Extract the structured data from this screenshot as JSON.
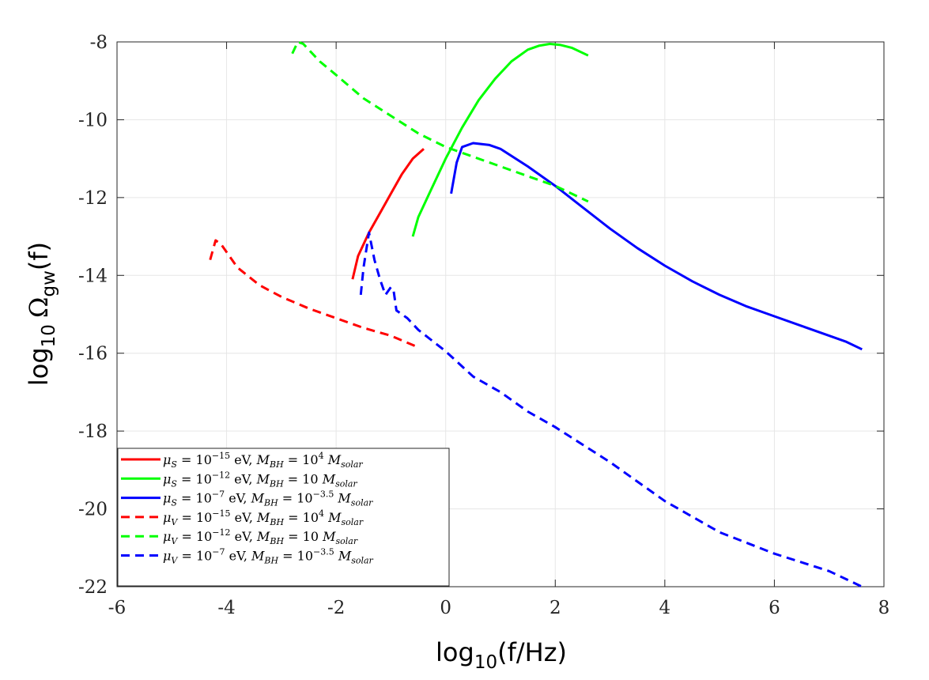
{
  "chart_data": {
    "type": "line",
    "xlabel": "log10(f/Hz)",
    "xlabel_parts": {
      "base": "log",
      "sub": "10",
      "rest": "(f/Hz)"
    },
    "ylabel": "log10 Ωgw(f)",
    "ylabel_parts": {
      "base": "log",
      "sub": "10",
      "omega": "Ω",
      "omega_sub": "gw",
      "rest": "(f)"
    },
    "xlim": [
      -6,
      8
    ],
    "ylim": [
      -22,
      -8
    ],
    "xticks": [
      -6,
      -4,
      -2,
      0,
      2,
      4,
      6,
      8
    ],
    "xtick_labels": [
      "-6",
      "-4",
      "-2",
      "0",
      "2",
      "4",
      "6",
      "8"
    ],
    "yticks": [
      -22,
      -20,
      -18,
      -16,
      -14,
      -12,
      -10,
      -8
    ],
    "ytick_labels": [
      "-22",
      "-20",
      "-18",
      "-16",
      "-14",
      "-12",
      "-10",
      "-8"
    ],
    "grid": true,
    "legend_position": "bottom-left",
    "series": [
      {
        "name": "μS = 10^-15 eV, MBH = 10^4 Msolar",
        "legend": {
          "mu": "μ",
          "mu_sub": "S",
          "eq1": " = 10",
          "exp1": "−15",
          "unit": " eV, ",
          "m": "M",
          "m_sub": "BH",
          "eq2": " = 10",
          "exp2": "4",
          "m2": " M",
          "m2_sub": "solar"
        },
        "color": "#ff0000",
        "style": "solid",
        "x": [
          -1.7,
          -1.6,
          -1.4,
          -1.2,
          -1.0,
          -0.8,
          -0.6,
          -0.4
        ],
        "y": [
          -14.1,
          -13.5,
          -12.9,
          -12.4,
          -11.9,
          -11.4,
          -11.0,
          -10.75
        ]
      },
      {
        "name": "μS = 10^-12 eV, MBH = 10 Msolar",
        "legend": {
          "mu": "μ",
          "mu_sub": "S",
          "eq1": " = 10",
          "exp1": "−12",
          "unit": " eV, ",
          "m": "M",
          "m_sub": "BH",
          "eq2": " = 10",
          "exp2": "",
          "m2": " M",
          "m2_sub": "solar"
        },
        "color": "#00ff00",
        "style": "solid",
        "x": [
          -0.6,
          -0.5,
          -0.3,
          0.0,
          0.3,
          0.6,
          0.9,
          1.2,
          1.5,
          1.7,
          1.9,
          2.1,
          2.3,
          2.6
        ],
        "y": [
          -13.0,
          -12.5,
          -11.9,
          -11.0,
          -10.2,
          -9.5,
          -8.95,
          -8.5,
          -8.2,
          -8.1,
          -8.05,
          -8.08,
          -8.15,
          -8.35
        ]
      },
      {
        "name": "μS = 10^-7 eV, MBH = 10^-3.5 Msolar",
        "legend": {
          "mu": "μ",
          "mu_sub": "S",
          "eq1": " = 10",
          "exp1": "−7",
          "unit": " eV, ",
          "m": "M",
          "m_sub": "BH",
          "eq2": " = 10",
          "exp2": "−3.5",
          "m2": " M",
          "m2_sub": "solar"
        },
        "color": "#0000ff",
        "style": "solid",
        "x": [
          0.1,
          0.2,
          0.3,
          0.5,
          0.8,
          1.0,
          1.5,
          2.0,
          2.5,
          3.0,
          3.5,
          4.0,
          4.5,
          5.0,
          5.5,
          6.0,
          6.5,
          7.0,
          7.3,
          7.6
        ],
        "y": [
          -11.9,
          -11.1,
          -10.7,
          -10.6,
          -10.65,
          -10.75,
          -11.2,
          -11.7,
          -12.25,
          -12.8,
          -13.3,
          -13.75,
          -14.15,
          -14.5,
          -14.8,
          -15.05,
          -15.3,
          -15.55,
          -15.7,
          -15.9
        ]
      },
      {
        "name": "μV = 10^-15 eV, MBH = 10^4 Msolar",
        "legend": {
          "mu": "μ",
          "mu_sub": "V",
          "eq1": " = 10",
          "exp1": "−15",
          "unit": " eV, ",
          "m": "M",
          "m_sub": "BH",
          "eq2": " = 10",
          "exp2": "4",
          "m2": " M",
          "m2_sub": "solar"
        },
        "color": "#ff0000",
        "style": "dashed",
        "x": [
          -4.3,
          -4.2,
          -4.1,
          -3.8,
          -3.4,
          -3.0,
          -2.5,
          -2.0,
          -1.5,
          -1.0,
          -0.5
        ],
        "y": [
          -13.6,
          -13.1,
          -13.2,
          -13.8,
          -14.25,
          -14.55,
          -14.85,
          -15.1,
          -15.35,
          -15.55,
          -15.85
        ]
      },
      {
        "name": "μV = 10^-12 eV, MBH = 10 Msolar",
        "legend": {
          "mu": "μ",
          "mu_sub": "V",
          "eq1": " = 10",
          "exp1": "−12",
          "unit": " eV, ",
          "m": "M",
          "m_sub": "BH",
          "eq2": " = 10",
          "exp2": "",
          "m2": " M",
          "m2_sub": "solar"
        },
        "color": "#00ff00",
        "style": "dashed",
        "x": [
          -2.8,
          -2.7,
          -2.6,
          -2.3,
          -2.0,
          -1.5,
          -1.0,
          -0.5,
          0.0,
          0.5,
          1.0,
          1.5,
          2.0,
          2.6
        ],
        "y": [
          -8.3,
          -8.0,
          -8.05,
          -8.5,
          -8.85,
          -9.45,
          -9.9,
          -10.35,
          -10.7,
          -10.95,
          -11.2,
          -11.45,
          -11.7,
          -12.1
        ]
      },
      {
        "name": "μV = 10^-7 eV, MBH = 10^-3.5 Msolar",
        "legend": {
          "mu": "μ",
          "mu_sub": "V",
          "eq1": " = 10",
          "exp1": "−7",
          "unit": " eV, ",
          "m": "M",
          "m_sub": "BH",
          "eq2": " = 10",
          "exp2": "−3.5",
          "m2": " M",
          "m2_sub": "solar"
        },
        "color": "#0000ff",
        "style": "dashed",
        "x": [
          -1.55,
          -1.5,
          -1.4,
          -1.3,
          -1.2,
          -1.1,
          -1.0,
          -0.95,
          -0.9,
          -0.7,
          -0.5,
          0.0,
          0.5,
          1.0,
          1.5,
          2.0,
          3.0,
          4.0,
          5.0,
          6.0,
          7.0,
          7.6
        ],
        "y": [
          -14.5,
          -13.8,
          -12.9,
          -13.6,
          -14.1,
          -14.5,
          -14.3,
          -14.4,
          -14.9,
          -15.1,
          -15.4,
          -15.95,
          -16.6,
          -17.0,
          -17.5,
          -17.9,
          -18.8,
          -19.8,
          -20.6,
          -21.15,
          -21.6,
          -22.0
        ]
      }
    ]
  }
}
